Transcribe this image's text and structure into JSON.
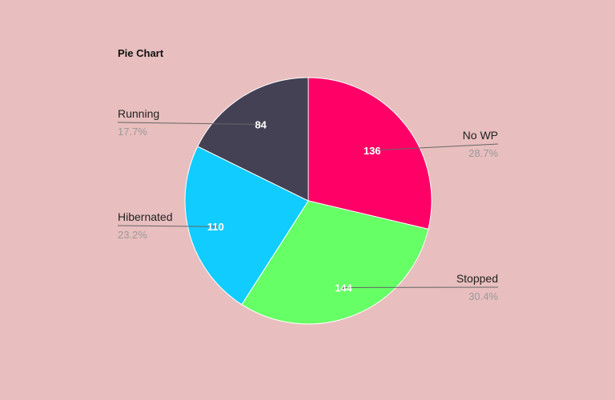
{
  "chart_data": {
    "type": "pie",
    "title": "Pie Chart",
    "slices": [
      {
        "label": "No WP",
        "value": 136,
        "percent": "28.7%",
        "color": "#ff0066"
      },
      {
        "label": "Stopped",
        "value": 144,
        "percent": "30.4%",
        "color": "#66ff66"
      },
      {
        "label": "Hibernated",
        "value": 110,
        "percent": "23.2%",
        "color": "#11ccff"
      },
      {
        "label": "Running",
        "value": 84,
        "percent": "17.7%",
        "color": "#444155"
      }
    ],
    "legend": "none"
  }
}
